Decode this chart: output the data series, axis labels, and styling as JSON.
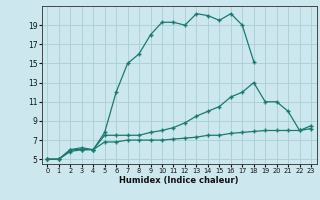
{
  "xlabel": "Humidex (Indice chaleur)",
  "bg_color": "#cce8ee",
  "grid_color": "#aacdd6",
  "line_color": "#1a7a6e",
  "curve1_x": [
    0,
    1,
    2,
    3,
    4,
    5,
    6,
    7,
    8,
    9,
    10,
    11,
    12,
    13,
    14,
    15,
    16,
    17,
    18
  ],
  "curve1_y": [
    5,
    5,
    6,
    6.2,
    6,
    7.8,
    12,
    15,
    16,
    18,
    19.3,
    19.3,
    19,
    20.2,
    20,
    19.5,
    20.2,
    19,
    15.2
  ],
  "curve2_x": [
    0,
    1,
    2,
    3,
    4,
    5,
    6,
    7,
    8,
    9,
    10,
    11,
    12,
    13,
    14,
    15,
    16,
    17,
    18,
    19,
    20,
    21,
    22,
    23
  ],
  "curve2_y": [
    5,
    5,
    6,
    6,
    6,
    7.5,
    7.5,
    7.5,
    7.5,
    7.8,
    8,
    8.3,
    8.8,
    9.5,
    10,
    10.5,
    11.5,
    12,
    13,
    11,
    11,
    10,
    8,
    8.5
  ],
  "curve3_x": [
    0,
    1,
    2,
    3,
    4,
    5,
    6,
    7,
    8,
    9,
    10,
    11,
    12,
    13,
    14,
    15,
    16,
    17,
    18,
    19,
    20,
    21,
    22,
    23
  ],
  "curve3_y": [
    5,
    5,
    5.8,
    6,
    6,
    6.8,
    6.8,
    7,
    7,
    7,
    7,
    7.1,
    7.2,
    7.3,
    7.5,
    7.5,
    7.7,
    7.8,
    7.9,
    8,
    8,
    8,
    8,
    8.2
  ],
  "xlim": [
    -0.5,
    23.5
  ],
  "ylim": [
    4.5,
    21
  ],
  "xticks": [
    0,
    1,
    2,
    3,
    4,
    5,
    6,
    7,
    8,
    9,
    10,
    11,
    12,
    13,
    14,
    15,
    16,
    17,
    18,
    19,
    20,
    21,
    22,
    23
  ],
  "yticks": [
    5,
    7,
    9,
    11,
    13,
    15,
    17,
    19
  ]
}
